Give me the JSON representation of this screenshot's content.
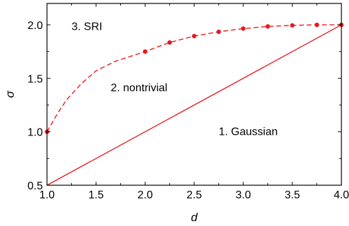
{
  "chart_data": {
    "type": "line",
    "title": "",
    "xlabel": "d",
    "ylabel": "σ",
    "xlim": [
      1.0,
      4.0
    ],
    "ylim": [
      0.5,
      2.2
    ],
    "x_ticks": [
      1.0,
      1.5,
      2.0,
      2.5,
      3.0,
      3.5,
      4.0
    ],
    "x_tick_labels": [
      "1.0",
      "1.5",
      "2.0",
      "2.5",
      "3.0",
      "3.5",
      "4.0"
    ],
    "y_ticks": [
      0.5,
      1.0,
      1.5,
      2.0
    ],
    "y_tick_labels": [
      "0.5",
      "1.0",
      "1.5",
      "2.0"
    ],
    "grid": false,
    "color": "#e8191f",
    "series": [
      {
        "style": "solid",
        "x": [
          1.0,
          4.0
        ],
        "y": [
          0.5,
          2.0
        ]
      },
      {
        "style": "dashed",
        "x": [
          1.0,
          1.1,
          1.2,
          1.35,
          1.5,
          1.7,
          2.0,
          2.25,
          2.5,
          2.75,
          3.0,
          3.25,
          3.5,
          3.75,
          4.0
        ],
        "y": [
          1.0,
          1.16,
          1.3,
          1.45,
          1.57,
          1.66,
          1.75,
          1.835,
          1.895,
          1.935,
          1.965,
          1.985,
          1.995,
          2.0,
          2.0
        ]
      },
      {
        "style": "markers",
        "x": [
          1.0,
          2.0,
          2.25,
          2.5,
          2.75,
          3.0,
          3.25,
          3.5,
          3.75,
          4.0
        ],
        "y": [
          1.0,
          1.75,
          1.835,
          1.895,
          1.935,
          1.965,
          1.985,
          1.995,
          2.0,
          2.0
        ]
      }
    ],
    "annotations": [
      {
        "text": "3. SRI",
        "x": 1.25,
        "y": 1.95
      },
      {
        "text": "2. nontrivial",
        "x": 1.65,
        "y": 1.38
      },
      {
        "text": "1. Gaussian",
        "x": 2.75,
        "y": 0.97
      }
    ]
  }
}
